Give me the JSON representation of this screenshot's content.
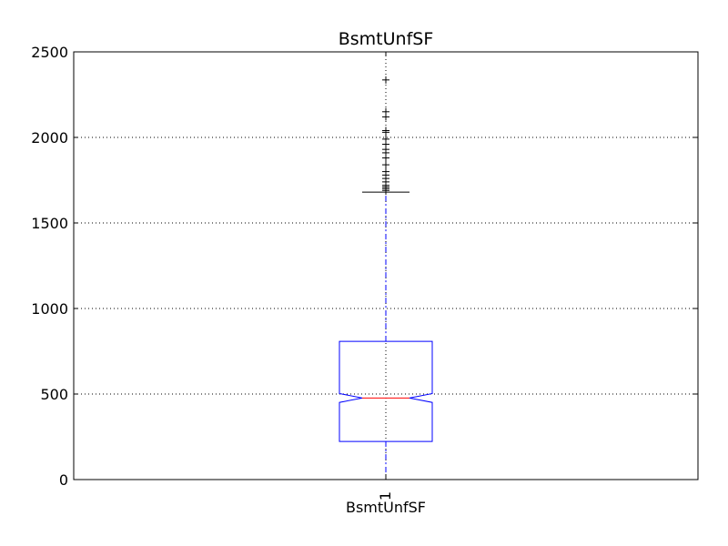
{
  "chart_data": {
    "type": "boxplot",
    "title": "BsmtUnfSF",
    "xlabel": "BsmtUnfSF",
    "ylabel": "",
    "ylim": [
      0,
      2500
    ],
    "yticks": [
      0,
      500,
      1000,
      1500,
      2000,
      2500
    ],
    "categories": [
      "1"
    ],
    "grid": true,
    "notched": true,
    "series": [
      {
        "min": 0,
        "q1": 223,
        "median": 477,
        "q3": 808,
        "max": 1680,
        "notch_low": 451,
        "notch_high": 503,
        "outliers": [
          1690,
          1700,
          1710,
          1720,
          1740,
          1760,
          1780,
          1800,
          1840,
          1880,
          1910,
          1930,
          1960,
          1990,
          2030,
          2040,
          2120,
          2150,
          2336
        ]
      }
    ],
    "colors": {
      "box": "#0000ff",
      "median": "#ff0000",
      "whisker": "#0000ff",
      "cap": "#000000",
      "flier": "#000000",
      "grid": "#000000"
    }
  }
}
